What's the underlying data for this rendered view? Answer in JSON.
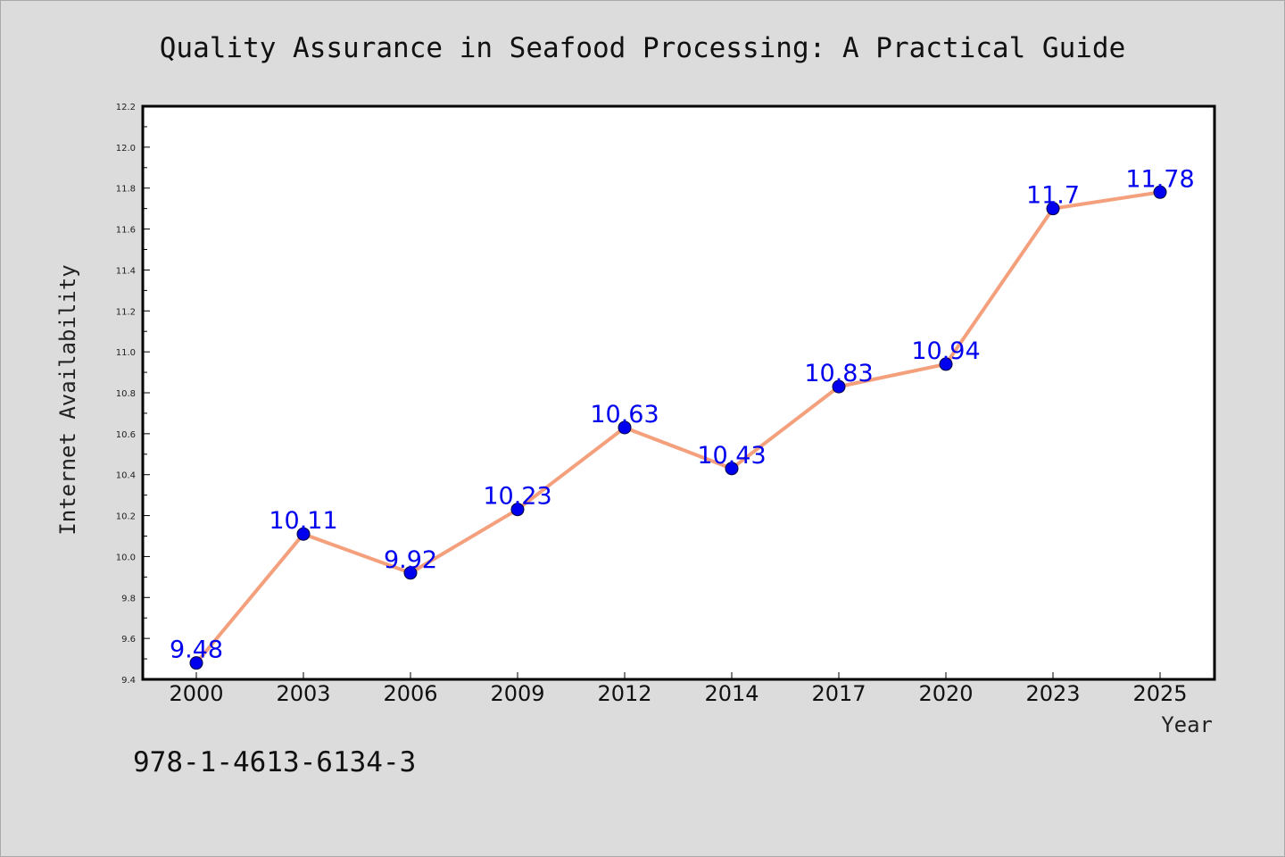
{
  "chart_data": {
    "type": "line",
    "title": "Quality Assurance in Seafood Processing: A Practical Guide",
    "xlabel": "Year",
    "ylabel": "Internet Availability",
    "categories": [
      "2000",
      "2003",
      "2006",
      "2009",
      "2012",
      "2014",
      "2017",
      "2020",
      "2023",
      "2025"
    ],
    "values": [
      9.48,
      10.11,
      9.92,
      10.23,
      10.63,
      10.43,
      10.83,
      10.94,
      11.7,
      11.78
    ],
    "data_labels": [
      "9.48",
      "10.11",
      "9.92",
      "10.23",
      "10.63",
      "10.43",
      "10.83",
      "10.94",
      "11.7",
      "11.78"
    ],
    "ylim": [
      9.4,
      12.2
    ],
    "yticks": [
      "9.4",
      "9.6",
      "9.8",
      "10.0",
      "10.2",
      "10.4",
      "10.6",
      "10.8",
      "11.0",
      "11.2",
      "11.4",
      "11.6",
      "11.8",
      "12.0",
      "12.2"
    ],
    "grid": false,
    "line_color": "#f4a07c",
    "marker_color": "#0000ee",
    "label_color": "#0000ee"
  },
  "footer": {
    "isbn": "978-1-4613-6134-3"
  }
}
